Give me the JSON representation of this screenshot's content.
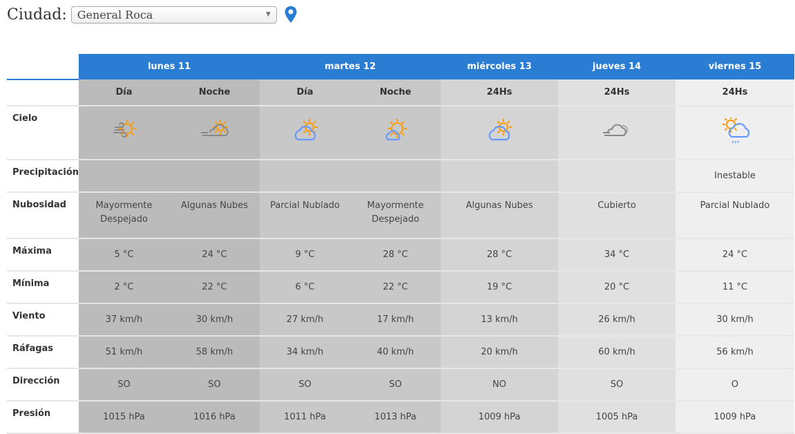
{
  "city": {
    "label": "Ciudad:",
    "selected": "General Roca",
    "location_icon": "map-pin-icon"
  },
  "days": [
    {
      "name": "lunes 11",
      "periods": [
        "Día",
        "Noche"
      ]
    },
    {
      "name": "martes 12",
      "periods": [
        "Día",
        "Noche"
      ]
    },
    {
      "name": "miércoles 13",
      "periods": [
        "24Hs"
      ]
    },
    {
      "name": "jueves 14",
      "periods": [
        "24Hs"
      ]
    },
    {
      "name": "viernes 15",
      "periods": [
        "24Hs"
      ]
    }
  ],
  "rows": {
    "cielo": "Cielo",
    "precipitacion": "Precipitación",
    "nubosidad": "Nubosidad",
    "maxima": "Máxima",
    "minima": "Mínima",
    "viento": "Viento",
    "rafagas": "Ráfagas",
    "direccion": "Dirección",
    "presion": "Presión"
  },
  "columns": [
    {
      "icon": "sun-wind-icon",
      "precip": "",
      "nub": "Mayormente Despejado",
      "max": "5 °C",
      "min": "2 °C",
      "viento": "37 km/h",
      "rafagas": "51 km/h",
      "dir": "SO",
      "presion": "1015 hPa"
    },
    {
      "icon": "cloud-wind-sun-gray-icon",
      "precip": "",
      "nub": "Algunas Nubes",
      "max": "24 °C",
      "min": "22 °C",
      "viento": "30 km/h",
      "rafagas": "58 km/h",
      "dir": "SO",
      "presion": "1016 hPa"
    },
    {
      "icon": "partly-cloudy-icon",
      "precip": "",
      "nub": "Parcial Nublado",
      "max": "9 °C",
      "min": "6 °C",
      "viento": "27 km/h",
      "rafagas": "34 km/h",
      "dir": "SO",
      "presion": "1011 hPa"
    },
    {
      "icon": "sun-small-cloud-icon",
      "precip": "",
      "nub": "Mayormente Despejado",
      "max": "28 °C",
      "min": "22 °C",
      "viento": "17 km/h",
      "rafagas": "40 km/h",
      "dir": "SO",
      "presion": "1013 hPa"
    },
    {
      "icon": "partly-cloudy-icon",
      "precip": "",
      "nub": "Algunas Nubes",
      "max": "28 °C",
      "min": "19 °C",
      "viento": "13 km/h",
      "rafagas": "20 km/h",
      "dir": "NO",
      "presion": "1009 hPa"
    },
    {
      "icon": "overcast-wind-icon",
      "precip": "",
      "nub": "Cubierto",
      "max": "34 °C",
      "min": "20 °C",
      "viento": "26 km/h",
      "rafagas": "60 km/h",
      "dir": "SO",
      "presion": "1005 hPa"
    },
    {
      "icon": "sun-cloud-rain-icon",
      "precip": "Inestable",
      "nub": "Parcial Nublado",
      "max": "24 °C",
      "min": "11 °C",
      "viento": "30 km/h",
      "rafagas": "56 km/h",
      "dir": "O",
      "presion": "1009 hPa"
    }
  ],
  "colors": {
    "header": "#2a7dd2",
    "sun": "#ff9900",
    "cloud_blue": "#6699ff",
    "cloud_gray": "#888888"
  }
}
